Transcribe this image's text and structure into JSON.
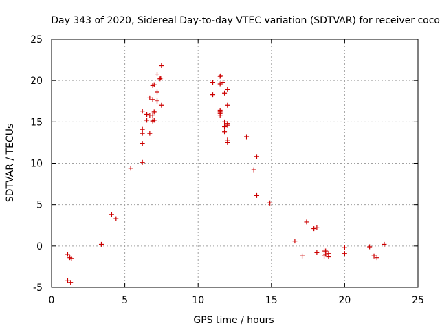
{
  "chart_data": {
    "type": "scatter",
    "title": "Day 343 of 2020, Sidereal Day-to-day VTEC variation (SDTVAR) for receiver coco",
    "xlabel": "GPS time / hours",
    "ylabel": "SDTVAR / TECUs",
    "xlim": [
      0,
      25
    ],
    "ylim": [
      -5,
      25
    ],
    "xticks": [
      0,
      5,
      10,
      15,
      20,
      25
    ],
    "yticks": [
      -5,
      0,
      5,
      10,
      15,
      20,
      25
    ],
    "grid": true,
    "marker": "+",
    "series": [
      {
        "name": "SDTVAR",
        "color": "#cc0000",
        "points": [
          [
            1.1,
            -4.2
          ],
          [
            1.3,
            -4.4
          ],
          [
            1.1,
            -1.0
          ],
          [
            1.25,
            -1.4
          ],
          [
            1.35,
            -1.5
          ],
          [
            3.4,
            0.2
          ],
          [
            4.1,
            3.8
          ],
          [
            4.4,
            3.3
          ],
          [
            5.4,
            9.4
          ],
          [
            6.2,
            10.1
          ],
          [
            6.2,
            12.4
          ],
          [
            6.2,
            13.6
          ],
          [
            6.2,
            14.1
          ],
          [
            6.2,
            16.3
          ],
          [
            6.5,
            15.2
          ],
          [
            6.5,
            15.9
          ],
          [
            6.7,
            13.6
          ],
          [
            6.7,
            15.8
          ],
          [
            6.7,
            17.9
          ],
          [
            6.9,
            15.1
          ],
          [
            6.9,
            15.8
          ],
          [
            6.9,
            17.7
          ],
          [
            6.9,
            19.4
          ],
          [
            7.0,
            15.2
          ],
          [
            7.0,
            16.2
          ],
          [
            7.0,
            19.5
          ],
          [
            7.2,
            17.4
          ],
          [
            7.2,
            17.6
          ],
          [
            7.2,
            18.6
          ],
          [
            7.2,
            20.8
          ],
          [
            7.4,
            20.2
          ],
          [
            7.45,
            20.3
          ],
          [
            7.5,
            21.8
          ],
          [
            7.5,
            17.0
          ],
          [
            11.0,
            19.8
          ],
          [
            11.0,
            18.3
          ],
          [
            11.5,
            20.5
          ],
          [
            11.55,
            20.6
          ],
          [
            11.5,
            19.6
          ],
          [
            11.5,
            16.4
          ],
          [
            11.5,
            16.2
          ],
          [
            11.5,
            16.0
          ],
          [
            11.5,
            15.8
          ],
          [
            11.7,
            19.8
          ],
          [
            11.8,
            18.5
          ],
          [
            11.8,
            15.0
          ],
          [
            11.8,
            14.4
          ],
          [
            11.8,
            13.8
          ],
          [
            12.0,
            18.9
          ],
          [
            12.0,
            17.0
          ],
          [
            12.0,
            14.8
          ],
          [
            12.0,
            14.6
          ],
          [
            12.0,
            12.8
          ],
          [
            12.0,
            12.5
          ],
          [
            13.3,
            13.2
          ],
          [
            13.8,
            9.2
          ],
          [
            14.0,
            10.8
          ],
          [
            14.0,
            6.1
          ],
          [
            14.9,
            5.2
          ],
          [
            16.6,
            0.6
          ],
          [
            17.1,
            -1.2
          ],
          [
            17.4,
            2.9
          ],
          [
            17.9,
            2.1
          ],
          [
            18.1,
            2.2
          ],
          [
            18.1,
            -0.8
          ],
          [
            18.6,
            -0.6
          ],
          [
            18.6,
            -1.2
          ],
          [
            18.7,
            -0.6
          ],
          [
            18.7,
            -1.0
          ],
          [
            18.9,
            -0.9
          ],
          [
            18.9,
            -1.3
          ],
          [
            20.0,
            -0.2
          ],
          [
            20.0,
            -0.9
          ],
          [
            21.7,
            -0.1
          ],
          [
            22.0,
            -1.2
          ],
          [
            22.2,
            -1.4
          ],
          [
            22.7,
            0.2
          ]
        ]
      }
    ]
  }
}
